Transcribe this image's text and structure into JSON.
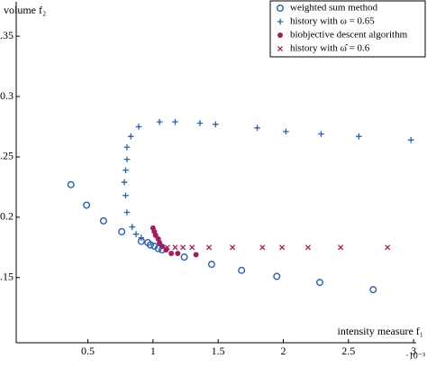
{
  "chart_data": {
    "type": "scatter",
    "x_label": "intensity measure f₁",
    "y_label": "volume f₂",
    "x_multiplier": "·10⁻³",
    "xlim": [
      -0.05,
      3.02
    ],
    "ylim": [
      0.096,
      0.38
    ],
    "xticks": [
      0.5,
      1,
      1.5,
      2,
      2.5,
      3
    ],
    "yticks": [
      0.15,
      0.2,
      0.25,
      0.3,
      0.35
    ],
    "legend": "upper-right",
    "series": [
      {
        "name": "weighted sum method",
        "color": "#2d5fa8",
        "marker": "circle",
        "x": [
          0.37,
          0.49,
          0.62,
          0.76,
          0.91,
          0.96,
          0.98,
          1.01,
          1.04,
          1.07,
          1.24,
          1.45,
          1.68,
          1.95,
          2.28,
          2.69
        ],
        "values": [
          0.227,
          0.21,
          0.197,
          0.188,
          0.18,
          0.179,
          0.177,
          0.176,
          0.174,
          0.173,
          0.167,
          0.161,
          0.156,
          0.151,
          0.146,
          0.14
        ]
      },
      {
        "name": "history with ω = 0.65",
        "color": "#2d5fa8",
        "marker": "plus",
        "x": [
          0.91,
          0.87,
          0.84,
          0.8,
          0.79,
          0.78,
          0.79,
          0.8,
          0.8,
          0.83,
          0.89,
          1.05,
          1.17,
          1.36,
          1.48,
          1.8,
          2.02,
          2.29,
          2.58,
          2.98
        ],
        "values": [
          0.183,
          0.186,
          0.192,
          0.204,
          0.218,
          0.229,
          0.239,
          0.248,
          0.258,
          0.267,
          0.275,
          0.279,
          0.279,
          0.278,
          0.277,
          0.274,
          0.271,
          0.269,
          0.267,
          0.264
        ]
      },
      {
        "name": "biobjective descent algorithm",
        "color": "#a0205f",
        "marker": "dot",
        "x": [
          1.0,
          1.01,
          1.02,
          1.04,
          1.05,
          1.07,
          1.1,
          1.14,
          1.19,
          1.33
        ],
        "values": [
          0.191,
          0.188,
          0.185,
          0.182,
          0.179,
          0.176,
          0.173,
          0.17,
          0.17,
          0.169
        ]
      },
      {
        "name": "history with ω̂ = 0.6",
        "color": "#a0205f",
        "marker": "cross",
        "x": [
          1.11,
          1.17,
          1.23,
          1.3,
          1.43,
          1.61,
          1.84,
          1.99,
          2.19,
          2.44,
          2.8
        ],
        "values": [
          0.175,
          0.175,
          0.175,
          0.175,
          0.175,
          0.175,
          0.175,
          0.175,
          0.175,
          0.175,
          0.175
        ]
      }
    ]
  }
}
